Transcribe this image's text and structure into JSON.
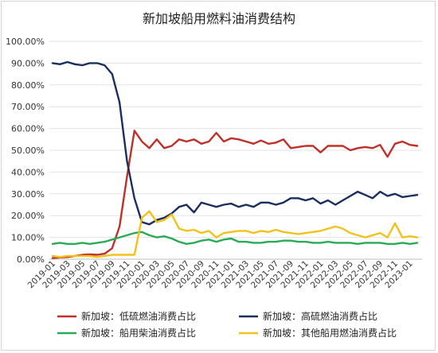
{
  "chart_data": {
    "type": "line",
    "title": "新加坡船用燃料油消费结构",
    "xlabel": "",
    "ylabel": "",
    "ylim": [
      0,
      100
    ],
    "y_ticks": [
      "0.00%",
      "10.00%",
      "20.00%",
      "30.00%",
      "40.00%",
      "50.00%",
      "60.00%",
      "70.00%",
      "80.00%",
      "90.00%",
      "100.00%"
    ],
    "x_tick_labels": [
      "2019-01",
      "2019-03",
      "2019-05",
      "2019-07",
      "2019-09",
      "2019-11",
      "2020-01",
      "2020-03",
      "2020-05",
      "2020-07",
      "2020-09",
      "2020-11",
      "2021-01",
      "2021-03",
      "2021-05",
      "2021-07",
      "2021-09",
      "2021-11",
      "2022-01",
      "2022-03",
      "2022-05",
      "2022-07",
      "2022-09",
      "2022-11",
      "2023-01"
    ],
    "grid": true,
    "legend_position": "bottom",
    "x": [
      "2019-01",
      "2019-02",
      "2019-03",
      "2019-04",
      "2019-05",
      "2019-06",
      "2019-07",
      "2019-08",
      "2019-09",
      "2019-10",
      "2019-11",
      "2019-12",
      "2020-01",
      "2020-02",
      "2020-03",
      "2020-04",
      "2020-05",
      "2020-06",
      "2020-07",
      "2020-08",
      "2020-09",
      "2020-10",
      "2020-11",
      "2020-12",
      "2021-01",
      "2021-02",
      "2021-03",
      "2021-04",
      "2021-05",
      "2021-06",
      "2021-07",
      "2021-08",
      "2021-09",
      "2021-10",
      "2021-11",
      "2021-12",
      "2022-01",
      "2022-02",
      "2022-03",
      "2022-04",
      "2022-05",
      "2022-06",
      "2022-07",
      "2022-08",
      "2022-09",
      "2022-10",
      "2022-11",
      "2022-12",
      "2023-01",
      "2023-02"
    ],
    "series": [
      {
        "name": "新加坡：低硫燃油消费占比",
        "color": "#c0302a",
        "values": [
          0.5,
          0.8,
          1.0,
          1.5,
          2.0,
          2.2,
          2.0,
          2.5,
          5.0,
          15.0,
          38.0,
          59.0,
          54.0,
          51.0,
          55.0,
          51.0,
          52.0,
          55.0,
          54.0,
          55.0,
          53.0,
          54.0,
          58.0,
          54.0,
          55.5,
          55.0,
          54.0,
          53.0,
          54.5,
          53.0,
          53.5,
          55.0,
          51.0,
          51.5,
          52.0,
          52.0,
          49.0,
          52.0,
          52.0,
          52.0,
          50.0,
          51.0,
          51.5,
          51.0,
          52.5,
          47.0,
          53.0,
          54.0,
          52.5,
          52.0
        ]
      },
      {
        "name": "新加坡：高硫燃油消费占比",
        "color": "#1b2f5e",
        "values": [
          90.0,
          89.5,
          90.5,
          89.5,
          89.0,
          90.0,
          90.0,
          89.0,
          85.0,
          72.0,
          45.0,
          28.0,
          17.0,
          16.0,
          18.0,
          19.0,
          21.0,
          24.0,
          25.0,
          21.5,
          26.0,
          25.0,
          24.0,
          25.0,
          25.5,
          24.0,
          25.0,
          24.0,
          26.0,
          26.0,
          25.0,
          26.0,
          28.0,
          28.0,
          27.0,
          28.0,
          25.5,
          27.0,
          25.0,
          27.0,
          29.0,
          31.0,
          29.5,
          28.0,
          31.0,
          29.0,
          30.0,
          28.5,
          29.0,
          29.5
        ]
      },
      {
        "name": "新加坡：船用柴油消费占比",
        "color": "#2aaa55",
        "values": [
          7.0,
          7.5,
          7.0,
          7.0,
          7.5,
          7.0,
          7.5,
          8.0,
          9.0,
          10.0,
          11.0,
          12.0,
          12.5,
          11.0,
          10.0,
          10.5,
          9.5,
          8.0,
          7.0,
          7.5,
          8.5,
          9.0,
          8.0,
          9.0,
          9.5,
          8.0,
          8.0,
          7.5,
          7.5,
          8.0,
          8.0,
          8.5,
          8.5,
          8.0,
          8.0,
          7.5,
          7.5,
          8.0,
          7.5,
          7.5,
          7.5,
          7.0,
          7.5,
          7.5,
          7.5,
          7.0,
          7.0,
          7.5,
          7.0,
          7.5
        ]
      },
      {
        "name": "新加坡：其他船用燃油消费占比",
        "color": "#f2c21a",
        "values": [
          1.5,
          1.0,
          1.5,
          1.5,
          1.5,
          1.5,
          1.0,
          1.5,
          2.0,
          2.0,
          2.0,
          2.0,
          19.0,
          22.0,
          17.0,
          18.0,
          20.5,
          14.0,
          13.0,
          13.5,
          12.0,
          13.0,
          10.0,
          12.0,
          12.5,
          13.0,
          13.0,
          12.0,
          13.0,
          12.5,
          13.5,
          12.5,
          12.0,
          11.5,
          12.0,
          12.5,
          13.0,
          14.0,
          15.0,
          14.0,
          12.0,
          11.0,
          10.0,
          11.0,
          12.0,
          10.0,
          16.5,
          10.0,
          10.5,
          10.0
        ]
      }
    ]
  }
}
